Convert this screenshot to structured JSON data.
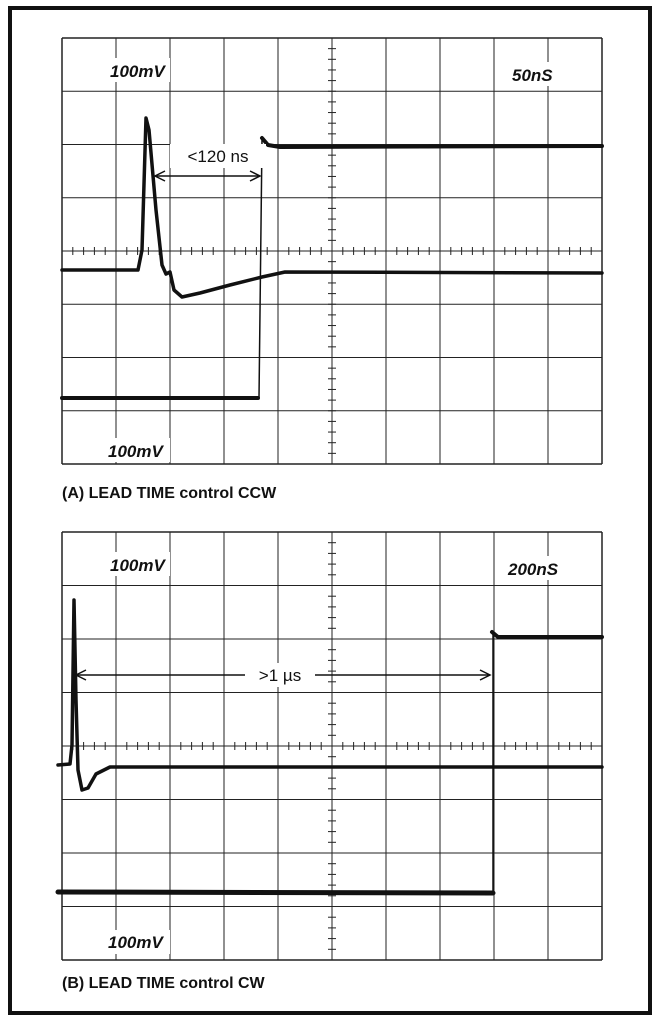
{
  "panels": [
    {
      "top_left_label": "100mV",
      "top_right_label": "50nS",
      "annotation": "<120 ns",
      "bottom_left_label": "100mV",
      "caption": "(A) LEAD TIME control CCW"
    },
    {
      "top_left_label": "100mV",
      "top_right_label": "200nS",
      "annotation": ">1 µs",
      "bottom_left_label": "100mV",
      "caption": "(B) LEAD TIME control CW"
    }
  ]
}
